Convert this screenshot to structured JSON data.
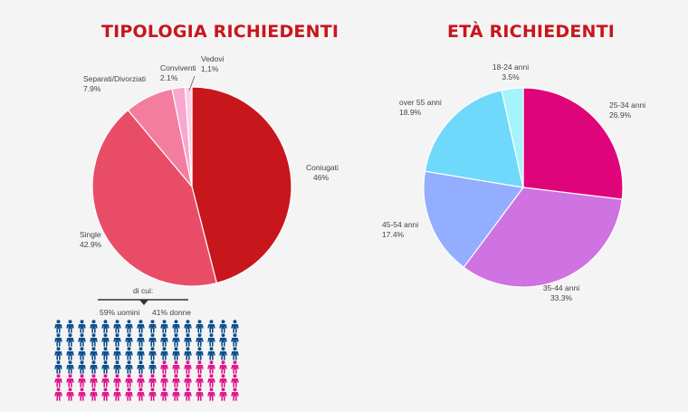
{
  "titles": {
    "left": "TIPOLOGIA RICHIEDENTI",
    "right": "ETÀ RICHIEDENTI"
  },
  "chart_data": [
    {
      "type": "pie",
      "title": "TIPOLOGIA RICHIEDENTI",
      "slices": [
        {
          "label": "Coniugati",
          "value_text": "46%",
          "value": 46,
          "color": "#c8161d"
        },
        {
          "label": "Single",
          "value_text": "42.9%",
          "value": 42.9,
          "color": "#e94c67"
        },
        {
          "label": "Separati/Divorziati",
          "value_text": "7.9%",
          "value": 7.9,
          "color": "#f27d9e"
        },
        {
          "label": "Conviventi",
          "value_text": "2.1%",
          "value": 2.1,
          "color": "#f7a7d0"
        },
        {
          "label": "Vedovi",
          "value_text": "1,1%",
          "value": 1.1,
          "color": "#fbd0e5"
        }
      ]
    },
    {
      "type": "pie",
      "title": "ETÀ RICHIEDENTI",
      "slices": [
        {
          "label": "25-34 anni",
          "value_text": "26.9%",
          "value": 26.9,
          "color": "#e0047a"
        },
        {
          "label": "35-44 anni",
          "value_text": "33.3%",
          "value": 33.3,
          "color": "#cf72e2"
        },
        {
          "label": "45-54 anni",
          "value_text": "17.4%",
          "value": 17.4,
          "color": "#93aefe"
        },
        {
          "label": "over 55 anni",
          "value_text": "18.9%",
          "value": 18.9,
          "color": "#6ed9fa"
        },
        {
          "label": "18-24 anni",
          "value_text": "3.5%",
          "value": 3.5,
          "color": "#a3f5fb"
        }
      ]
    }
  ],
  "single_breakdown": {
    "intro": "di cui:",
    "men_text": "59% uomini",
    "women_text": "41% donne",
    "men_percent": 59,
    "women_percent": 41,
    "men_color": "#0d4f8c",
    "women_color": "#e0168c",
    "icon": "person-icon"
  }
}
